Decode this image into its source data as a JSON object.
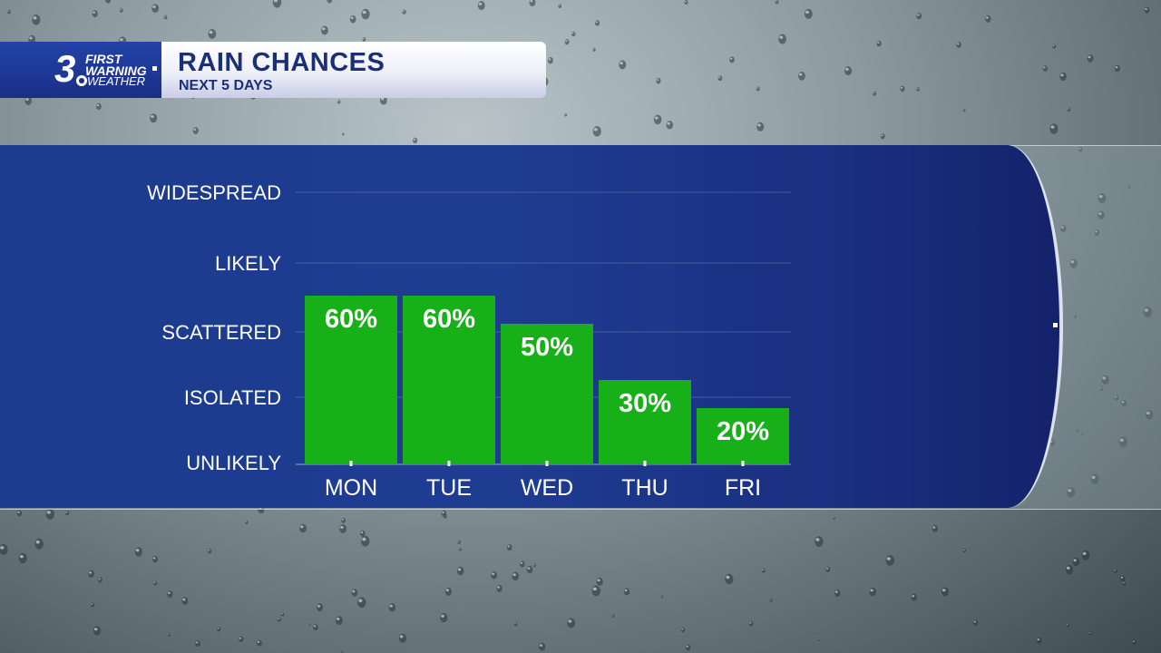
{
  "header": {
    "logo_number": "3",
    "logo_line1": "FIRST",
    "logo_line2": "WARNING",
    "logo_line3": "WEATHER",
    "title": "RAIN CHANCES",
    "subtitle": "NEXT 5 DAYS"
  },
  "colors": {
    "panel_blue": "#1e3d92",
    "bar_green": "#18b018",
    "title_navy": "#1b2f78"
  },
  "chart_data": {
    "type": "bar",
    "categories": [
      "MON",
      "TUE",
      "WED",
      "THU",
      "FRI"
    ],
    "values": [
      60,
      60,
      50,
      30,
      20
    ],
    "data_labels": [
      "60%",
      "60%",
      "50%",
      "30%",
      "20%"
    ],
    "y_categories": [
      "UNLIKELY",
      "ISOLATED",
      "SCATTERED",
      "LIKELY",
      "WIDESPREAD"
    ],
    "y_category_values": [
      0,
      20,
      40,
      60,
      80
    ],
    "ylim": [
      0,
      80
    ],
    "grid": true,
    "title": "RAIN CHANCES",
    "subtitle": "NEXT 5 DAYS",
    "xlabel": "",
    "ylabel": ""
  }
}
